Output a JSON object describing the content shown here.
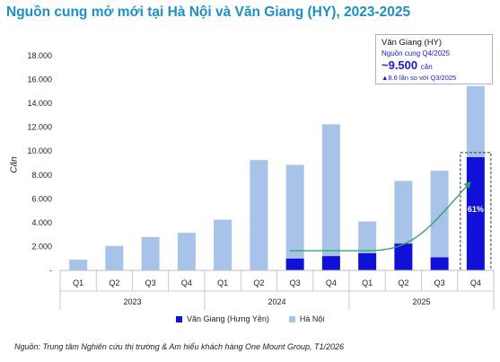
{
  "title": "Nguồn cung mở mới tại Hà Nội và Văn Giang (HY), 2023-2025",
  "source": "Nguồn: Trung tâm Nghiên cứu thị trường & Am hiểu khách hàng One Mount Group, T1/2026",
  "callout": {
    "title": "Văn Giang (HY)",
    "subtitle": "Nguồn cung Q4/2025",
    "value": "~9.500",
    "unit": "căn",
    "note": "▲8.6 lần so với Q3/2025"
  },
  "colors": {
    "van_giang": "#1010d8",
    "ha_noi": "#a8c3ea",
    "trend": "#2e9e62",
    "title": "#1b8fc8"
  },
  "chart_data": {
    "type": "bar",
    "stacked": true,
    "title": "Nguồn cung mở mới tại Hà Nội và Văn Giang (HY), 2023-2025",
    "ylabel": "Căn",
    "ylim": [
      0,
      18000
    ],
    "y_ticks": [
      "-",
      "2.000",
      "4.000",
      "6.000",
      "8.000",
      "10.000",
      "12.000",
      "14.000",
      "16.000",
      "18.000"
    ],
    "categories": [
      "Q1",
      "Q2",
      "Q3",
      "Q4",
      "Q1",
      "Q2",
      "Q3",
      "Q4",
      "Q1",
      "Q2",
      "Q3",
      "Q4"
    ],
    "groups": [
      {
        "label": "2023",
        "quarters": [
          "Q1",
          "Q2",
          "Q3",
          "Q4"
        ]
      },
      {
        "label": "2024",
        "quarters": [
          "Q1",
          "Q2",
          "Q3",
          "Q4"
        ]
      },
      {
        "label": "2025",
        "quarters": [
          "Q1",
          "Q2",
          "Q3",
          "Q4"
        ]
      }
    ],
    "series": [
      {
        "name": "Văn Giang (Hưng Yên)",
        "values": [
          0,
          0,
          0,
          0,
          0,
          0,
          1000,
          1200,
          1450,
          2250,
          1100,
          9500
        ]
      },
      {
        "name": "Hà Nội",
        "values": [
          900,
          2050,
          2800,
          3150,
          4250,
          9250,
          7850,
          11050,
          2650,
          5250,
          7250,
          5950
        ]
      }
    ],
    "annotation": "61%",
    "legend": "bottom"
  }
}
